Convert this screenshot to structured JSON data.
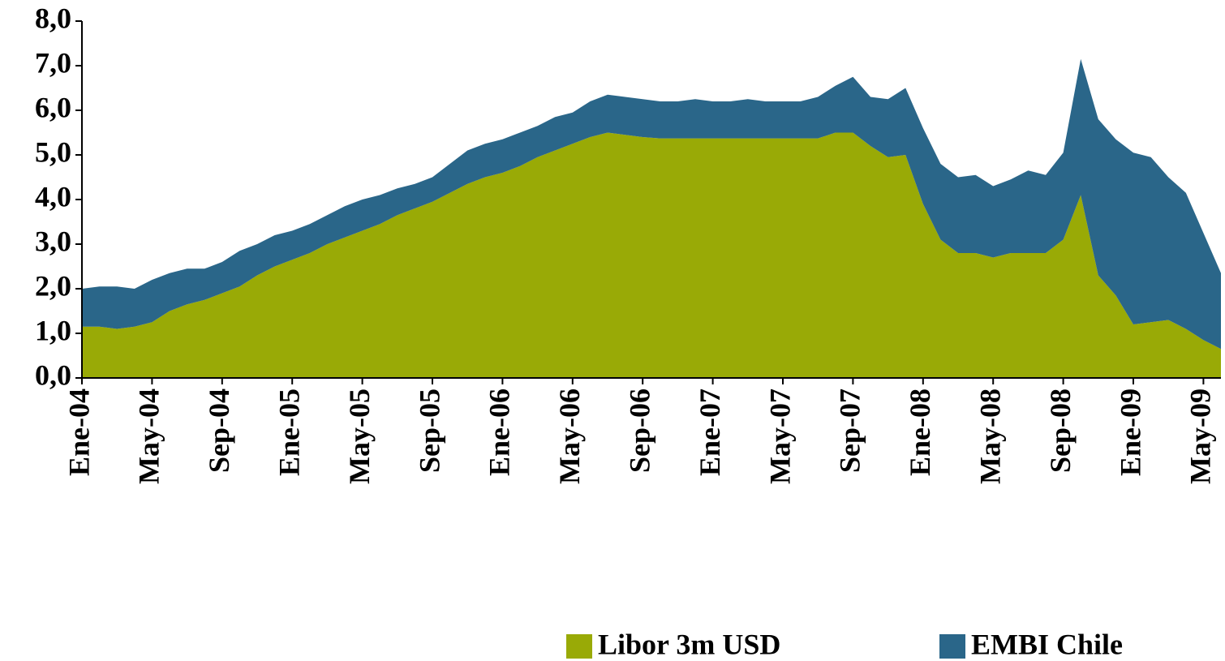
{
  "chart_data": {
    "type": "stacked_area",
    "categories": [
      "Ene-04",
      null,
      null,
      null,
      "May-04",
      null,
      null,
      null,
      "Sep-04",
      null,
      null,
      null,
      "Ene-05",
      null,
      null,
      null,
      "May-05",
      null,
      null,
      null,
      "Sep-05",
      null,
      null,
      null,
      "Ene-06",
      null,
      null,
      null,
      "May-06",
      null,
      null,
      null,
      "Sep-06",
      null,
      null,
      null,
      "Ene-07",
      null,
      null,
      null,
      "May-07",
      null,
      null,
      null,
      "Sep-07",
      null,
      null,
      null,
      "Ene-08",
      null,
      null,
      null,
      "May-08",
      null,
      null,
      null,
      "Sep-08",
      null,
      null,
      null,
      "Ene-09",
      null,
      null,
      null,
      "May-09",
      null
    ],
    "series": [
      {
        "name": "Libor 3m USD",
        "color": "#99aa06",
        "values": [
          1.15,
          1.15,
          1.1,
          1.15,
          1.25,
          1.5,
          1.65,
          1.75,
          1.9,
          2.05,
          2.3,
          2.5,
          2.65,
          2.8,
          3.0,
          3.15,
          3.3,
          3.45,
          3.65,
          3.8,
          3.95,
          4.15,
          4.35,
          4.5,
          4.6,
          4.75,
          4.95,
          5.1,
          5.25,
          5.4,
          5.5,
          5.45,
          5.4,
          5.37,
          5.37,
          5.37,
          5.37,
          5.37,
          5.37,
          5.37,
          5.37,
          5.37,
          5.37,
          5.5,
          5.5,
          5.2,
          4.95,
          5.0,
          3.9,
          3.1,
          2.8,
          2.8,
          2.7,
          2.8,
          2.8,
          2.8,
          3.1,
          4.1,
          2.3,
          1.85,
          1.2,
          1.25,
          1.3,
          1.1,
          0.85,
          0.65
        ]
      },
      {
        "name": "EMBI Chile",
        "color": "#2a6689",
        "values": [
          0.85,
          0.9,
          0.95,
          0.85,
          0.95,
          0.85,
          0.8,
          0.7,
          0.7,
          0.8,
          0.7,
          0.7,
          0.65,
          0.65,
          0.65,
          0.7,
          0.7,
          0.65,
          0.6,
          0.55,
          0.55,
          0.65,
          0.75,
          0.75,
          0.75,
          0.75,
          0.7,
          0.75,
          0.7,
          0.8,
          0.85,
          0.85,
          0.85,
          0.83,
          0.83,
          0.88,
          0.83,
          0.83,
          0.88,
          0.83,
          0.83,
          0.83,
          0.93,
          1.05,
          1.25,
          1.1,
          1.3,
          1.5,
          1.7,
          1.7,
          1.7,
          1.75,
          1.6,
          1.65,
          1.85,
          1.75,
          1.95,
          3.05,
          3.5,
          3.5,
          3.85,
          3.7,
          3.2,
          3.05,
          2.4,
          1.7
        ]
      }
    ],
    "ylim": [
      0,
      8
    ],
    "yticks": [
      {
        "value": 0,
        "label": "0,0"
      },
      {
        "value": 1,
        "label": "1,0"
      },
      {
        "value": 2,
        "label": "2,0"
      },
      {
        "value": 3,
        "label": "3,0"
      },
      {
        "value": 4,
        "label": "4,0"
      },
      {
        "value": 5,
        "label": "5,0"
      },
      {
        "value": 6,
        "label": "6,0"
      },
      {
        "value": 7,
        "label": "7,0"
      },
      {
        "value": 8,
        "label": "8,0"
      }
    ],
    "legend": "bottom"
  }
}
